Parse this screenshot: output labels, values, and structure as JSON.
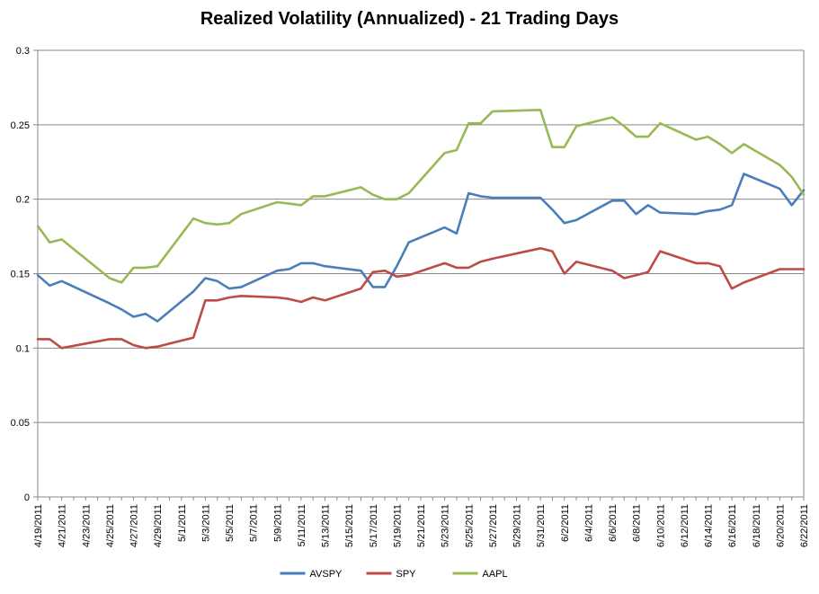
{
  "chart_data": {
    "type": "line",
    "title": "Realized Volatility (Annualized) - 21 Trading Days",
    "xlabel": "",
    "ylabel": "",
    "ylim": [
      0,
      0.3
    ],
    "yticks": [
      "0",
      "0.05",
      "0.1",
      "0.15",
      "0.2",
      "0.25",
      "0.3"
    ],
    "grid": true,
    "legend": "bottom",
    "x_tick_labels": [
      "4/19/2011",
      "4/21/2011",
      "4/23/2011",
      "4/25/2011",
      "4/27/2011",
      "4/29/2011",
      "5/1/2011",
      "5/3/2011",
      "5/5/2011",
      "5/7/2011",
      "5/9/2011",
      "5/11/2011",
      "5/13/2011",
      "5/15/2011",
      "5/17/2011",
      "5/19/2011",
      "5/21/2011",
      "5/23/2011",
      "5/25/2011",
      "5/27/2011",
      "5/29/2011",
      "5/31/2011",
      "6/2/2011",
      "6/4/2011",
      "6/6/2011",
      "6/8/2011",
      "6/10/2011",
      "6/12/2011",
      "6/14/2011",
      "6/16/2011",
      "6/18/2011",
      "6/20/2011",
      "6/22/2011"
    ],
    "series": [
      {
        "name": "AVSPY",
        "color": "#4a7ebb",
        "points": [
          [
            "4/19/2011",
            0.149
          ],
          [
            "4/20/2011",
            0.142
          ],
          [
            "4/21/2011",
            0.145
          ],
          [
            "4/25/2011",
            0.13
          ],
          [
            "4/26/2011",
            0.126
          ],
          [
            "4/27/2011",
            0.121
          ],
          [
            "4/28/2011",
            0.123
          ],
          [
            "4/29/2011",
            0.118
          ],
          [
            "5/2/2011",
            0.138
          ],
          [
            "5/3/2011",
            0.147
          ],
          [
            "5/4/2011",
            0.145
          ],
          [
            "5/5/2011",
            0.14
          ],
          [
            "5/6/2011",
            0.141
          ],
          [
            "5/9/2011",
            0.152
          ],
          [
            "5/10/2011",
            0.153
          ],
          [
            "5/11/2011",
            0.157
          ],
          [
            "5/12/2011",
            0.157
          ],
          [
            "5/13/2011",
            0.155
          ],
          [
            "5/16/2011",
            0.152
          ],
          [
            "5/17/2011",
            0.141
          ],
          [
            "5/18/2011",
            0.141
          ],
          [
            "5/19/2011",
            0.155
          ],
          [
            "5/20/2011",
            0.171
          ],
          [
            "5/23/2011",
            0.181
          ],
          [
            "5/24/2011",
            0.177
          ],
          [
            "5/25/2011",
            0.204
          ],
          [
            "5/26/2011",
            0.202
          ],
          [
            "5/27/2011",
            0.201
          ],
          [
            "5/31/2011",
            0.201
          ],
          [
            "6/1/2011",
            0.193
          ],
          [
            "6/2/2011",
            0.184
          ],
          [
            "6/3/2011",
            0.186
          ],
          [
            "6/6/2011",
            0.199
          ],
          [
            "6/7/2011",
            0.199
          ],
          [
            "6/8/2011",
            0.19
          ],
          [
            "6/9/2011",
            0.196
          ],
          [
            "6/10/2011",
            0.191
          ],
          [
            "6/13/2011",
            0.19
          ],
          [
            "6/14/2011",
            0.192
          ],
          [
            "6/15/2011",
            0.193
          ],
          [
            "6/16/2011",
            0.196
          ],
          [
            "6/17/2011",
            0.217
          ],
          [
            "6/20/2011",
            0.207
          ],
          [
            "6/21/2011",
            0.196
          ],
          [
            "6/22/2011",
            0.206
          ]
        ]
      },
      {
        "name": "SPY",
        "color": "#be4b48",
        "points": [
          [
            "4/19/2011",
            0.106
          ],
          [
            "4/20/2011",
            0.106
          ],
          [
            "4/21/2011",
            0.1
          ],
          [
            "4/25/2011",
            0.106
          ],
          [
            "4/26/2011",
            0.106
          ],
          [
            "4/27/2011",
            0.102
          ],
          [
            "4/28/2011",
            0.1
          ],
          [
            "4/29/2011",
            0.101
          ],
          [
            "5/2/2011",
            0.107
          ],
          [
            "5/3/2011",
            0.132
          ],
          [
            "5/4/2011",
            0.132
          ],
          [
            "5/5/2011",
            0.134
          ],
          [
            "5/6/2011",
            0.135
          ],
          [
            "5/9/2011",
            0.134
          ],
          [
            "5/10/2011",
            0.133
          ],
          [
            "5/11/2011",
            0.131
          ],
          [
            "5/12/2011",
            0.134
          ],
          [
            "5/13/2011",
            0.132
          ],
          [
            "5/16/2011",
            0.14
          ],
          [
            "5/17/2011",
            0.151
          ],
          [
            "5/18/2011",
            0.152
          ],
          [
            "5/19/2011",
            0.148
          ],
          [
            "5/20/2011",
            0.149
          ],
          [
            "5/23/2011",
            0.157
          ],
          [
            "5/24/2011",
            0.154
          ],
          [
            "5/25/2011",
            0.154
          ],
          [
            "5/26/2011",
            0.158
          ],
          [
            "5/27/2011",
            0.16
          ],
          [
            "5/31/2011",
            0.167
          ],
          [
            "6/1/2011",
            0.165
          ],
          [
            "6/2/2011",
            0.15
          ],
          [
            "6/3/2011",
            0.158
          ],
          [
            "6/6/2011",
            0.152
          ],
          [
            "6/7/2011",
            0.147
          ],
          [
            "6/8/2011",
            0.149
          ],
          [
            "6/9/2011",
            0.151
          ],
          [
            "6/10/2011",
            0.165
          ],
          [
            "6/13/2011",
            0.157
          ],
          [
            "6/14/2011",
            0.157
          ],
          [
            "6/15/2011",
            0.155
          ],
          [
            "6/16/2011",
            0.14
          ],
          [
            "6/17/2011",
            0.144
          ],
          [
            "6/20/2011",
            0.153
          ],
          [
            "6/21/2011",
            0.153
          ],
          [
            "6/22/2011",
            0.153
          ]
        ]
      },
      {
        "name": "AAPL",
        "color": "#98b954",
        "points": [
          [
            "4/19/2011",
            0.182
          ],
          [
            "4/20/2011",
            0.171
          ],
          [
            "4/21/2011",
            0.173
          ],
          [
            "4/25/2011",
            0.147
          ],
          [
            "4/26/2011",
            0.144
          ],
          [
            "4/27/2011",
            0.154
          ],
          [
            "4/28/2011",
            0.154
          ],
          [
            "4/29/2011",
            0.155
          ],
          [
            "5/2/2011",
            0.187
          ],
          [
            "5/3/2011",
            0.184
          ],
          [
            "5/4/2011",
            0.183
          ],
          [
            "5/5/2011",
            0.184
          ],
          [
            "5/6/2011",
            0.19
          ],
          [
            "5/9/2011",
            0.198
          ],
          [
            "5/10/2011",
            0.197
          ],
          [
            "5/11/2011",
            0.196
          ],
          [
            "5/12/2011",
            0.202
          ],
          [
            "5/13/2011",
            0.202
          ],
          [
            "5/16/2011",
            0.208
          ],
          [
            "5/17/2011",
            0.203
          ],
          [
            "5/18/2011",
            0.2
          ],
          [
            "5/19/2011",
            0.2
          ],
          [
            "5/20/2011",
            0.204
          ],
          [
            "5/23/2011",
            0.231
          ],
          [
            "5/24/2011",
            0.233
          ],
          [
            "5/25/2011",
            0.251
          ],
          [
            "5/26/2011",
            0.251
          ],
          [
            "5/27/2011",
            0.259
          ],
          [
            "5/31/2011",
            0.26
          ],
          [
            "6/1/2011",
            0.235
          ],
          [
            "6/2/2011",
            0.235
          ],
          [
            "6/3/2011",
            0.249
          ],
          [
            "6/6/2011",
            0.255
          ],
          [
            "6/7/2011",
            0.249
          ],
          [
            "6/8/2011",
            0.242
          ],
          [
            "6/9/2011",
            0.242
          ],
          [
            "6/10/2011",
            0.251
          ],
          [
            "6/13/2011",
            0.24
          ],
          [
            "6/14/2011",
            0.242
          ],
          [
            "6/15/2011",
            0.237
          ],
          [
            "6/16/2011",
            0.231
          ],
          [
            "6/17/2011",
            0.237
          ],
          [
            "6/20/2011",
            0.223
          ],
          [
            "6/21/2011",
            0.215
          ],
          [
            "6/22/2011",
            0.203
          ]
        ]
      }
    ]
  }
}
